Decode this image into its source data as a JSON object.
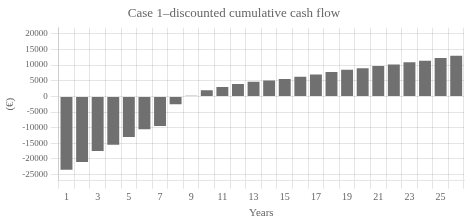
{
  "chart_data": {
    "type": "bar",
    "title": "Case 1–discounted cumulative cash flow",
    "xlabel": "Years",
    "ylabel": "(€)",
    "categories": [
      "1",
      null,
      "3",
      null,
      "5",
      null,
      "7",
      null,
      "9",
      null,
      "11",
      null,
      "13",
      null,
      "15",
      null,
      "17",
      null,
      "19",
      null,
      "21",
      null,
      "23",
      null,
      "25",
      null
    ],
    "values": [
      -23500,
      -21000,
      -17500,
      -15500,
      -13000,
      -10500,
      -9500,
      -2500,
      200,
      2000,
      3000,
      4000,
      4700,
      5100,
      5600,
      6300,
      7000,
      7800,
      8500,
      9000,
      9700,
      10200,
      10900,
      11400,
      12300,
      13000
    ],
    "color": "#707070",
    "ylim": [
      -27000,
      22000
    ],
    "yticks": [
      -25000,
      -20000,
      -15000,
      -10000,
      -5000,
      0,
      5000,
      10000,
      15000,
      20000
    ],
    "grid": true
  }
}
